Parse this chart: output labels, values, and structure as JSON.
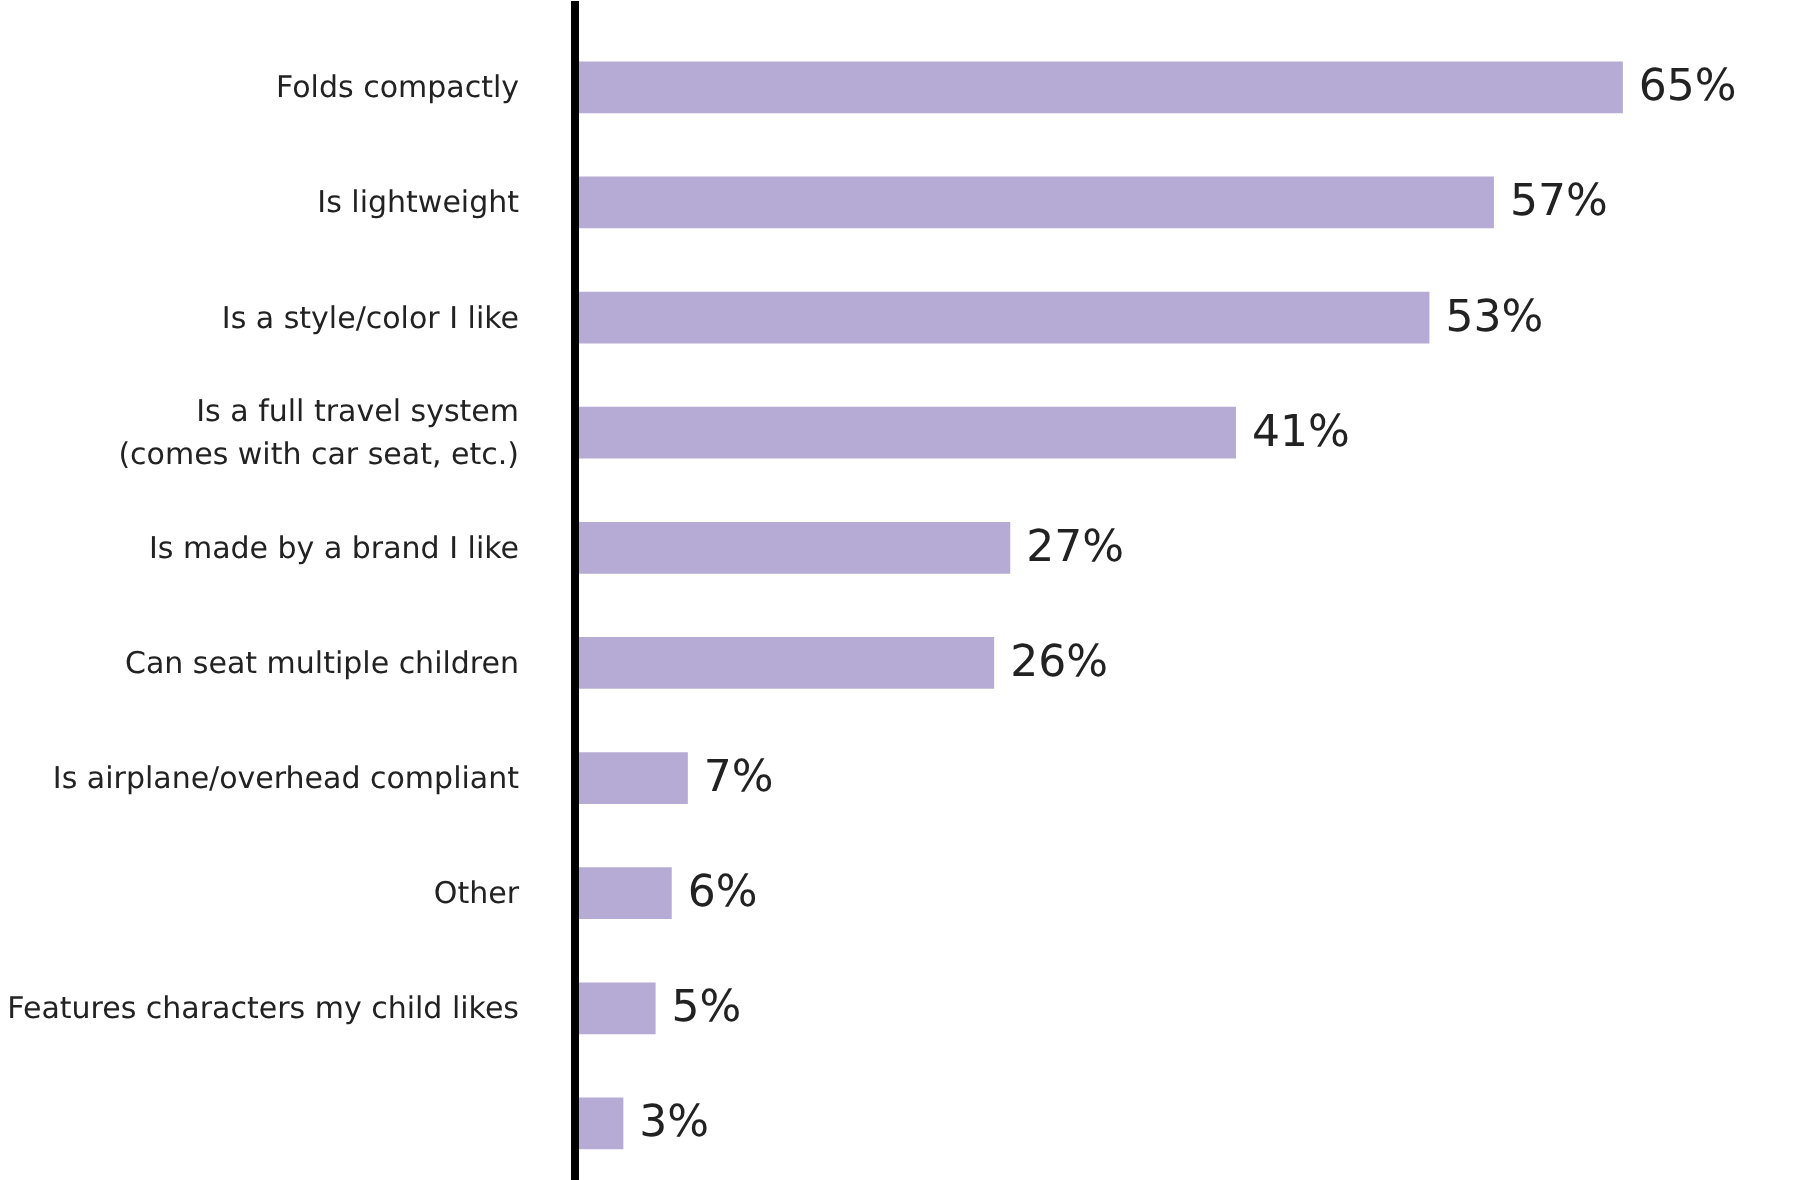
{
  "chart_data": {
    "type": "bar",
    "orientation": "horizontal",
    "categories": [
      "Folds compactly",
      "Is lightweight",
      "Is a style/color I like",
      "Is a full travel system\n(comes with car seat, etc.)",
      "Is made by a brand I like",
      "Can seat multiple children",
      "Is airplane/overhead compliant",
      "Other",
      "Features characters my child likes",
      null
    ],
    "values": [
      65,
      57,
      53,
      41,
      27,
      26,
      7,
      6,
      5,
      3
    ],
    "color": "#b6abd5",
    "data_labels": true,
    "value_labels": [
      "65%",
      "57%",
      "53%",
      "41%",
      "27%",
      "26%",
      "7%",
      "6%",
      "5%",
      "3%"
    ],
    "grid": false
  }
}
